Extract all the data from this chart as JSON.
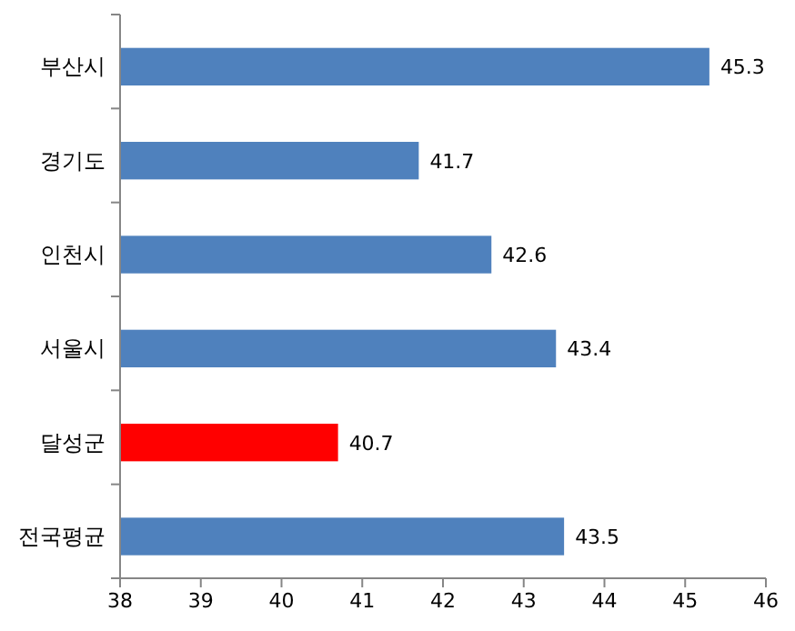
{
  "chart_data": {
    "type": "bar",
    "orientation": "horizontal",
    "categories": [
      "부산시",
      "경기도",
      "인천시",
      "서울시",
      "달성군",
      "전국평균"
    ],
    "values": [
      45.3,
      41.7,
      42.6,
      43.4,
      40.7,
      43.5
    ],
    "colors": [
      "#4f81bd",
      "#4f81bd",
      "#4f81bd",
      "#4f81bd",
      "#ff0000",
      "#4f81bd"
    ],
    "xlim": [
      38,
      46
    ],
    "xticks": [
      38,
      39,
      40,
      41,
      42,
      43,
      44,
      45,
      46
    ],
    "data_labels": true
  }
}
